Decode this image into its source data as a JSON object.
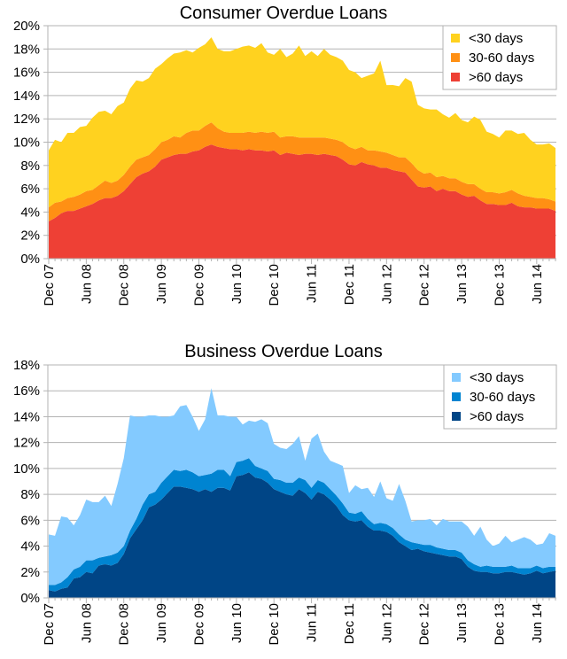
{
  "chart_data": [
    {
      "type": "area",
      "stacked": true,
      "title": "Consumer Overdue Loans",
      "xlabel": "",
      "ylabel": "",
      "ylim": [
        0,
        20
      ],
      "y_tick_labels": [
        "0%",
        "2%",
        "4%",
        "6%",
        "8%",
        "10%",
        "12%",
        "14%",
        "16%",
        "18%",
        "20%"
      ],
      "x_tick_labels": [
        "Dec 07",
        "Jun 08",
        "Dec 08",
        "Jun 09",
        "Dec 09",
        "Jun 10",
        "Dec 10",
        "Jun 11",
        "Dec 11",
        "Jun 12",
        "Dec 12",
        "Jun 13",
        "Dec 13",
        "Jun 14"
      ],
      "grid": true,
      "legend_position": "top-right",
      "x": [
        "Dec 07",
        "Jan 08",
        "Feb 08",
        "Mar 08",
        "Apr 08",
        "May 08",
        "Jun 08",
        "Jul 08",
        "Aug 08",
        "Sep 08",
        "Oct 08",
        "Nov 08",
        "Dec 08",
        "Jan 09",
        "Feb 09",
        "Mar 09",
        "Apr 09",
        "May 09",
        "Jun 09",
        "Jul 09",
        "Aug 09",
        "Sep 09",
        "Oct 09",
        "Nov 09",
        "Dec 09",
        "Jan 10",
        "Feb 10",
        "Mar 10",
        "Apr 10",
        "May 10",
        "Jun 10",
        "Jul 10",
        "Aug 10",
        "Sep 10",
        "Oct 10",
        "Nov 10",
        "Dec 10",
        "Jan 11",
        "Feb 11",
        "Mar 11",
        "Apr 11",
        "May 11",
        "Jun 11",
        "Jul 11",
        "Aug 11",
        "Sep 11",
        "Oct 11",
        "Nov 11",
        "Dec 11",
        "Jan 12",
        "Feb 12",
        "Mar 12",
        "Apr 12",
        "May 12",
        "Jun 12",
        "Jul 12",
        "Aug 12",
        "Sep 12",
        "Oct 12",
        "Nov 12",
        "Dec 12",
        "Jan 13",
        "Feb 13",
        "Mar 13",
        "Apr 13",
        "May 13",
        "Jun 13",
        "Jul 13",
        "Aug 13",
        "Sep 13",
        "Oct 13",
        "Nov 13",
        "Dec 13",
        "Jan 14",
        "Feb 14",
        "Mar 14",
        "Apr 14",
        "May 14",
        "Jun 14",
        "Jul 14",
        "Aug 14",
        "Sep 14"
      ],
      "series": [
        {
          "name": ">60 days",
          "color": "#ee4035",
          "values": [
            3.2,
            3.5,
            3.9,
            4.1,
            4.1,
            4.3,
            4.5,
            4.7,
            5.0,
            5.2,
            5.2,
            5.4,
            5.8,
            6.4,
            7.0,
            7.3,
            7.5,
            7.9,
            8.5,
            8.7,
            8.9,
            9.0,
            9.0,
            9.2,
            9.3,
            9.6,
            9.8,
            9.6,
            9.5,
            9.4,
            9.4,
            9.3,
            9.4,
            9.3,
            9.3,
            9.2,
            9.3,
            8.9,
            9.1,
            9.0,
            8.9,
            9.0,
            9.0,
            8.9,
            9.0,
            8.9,
            8.8,
            8.5,
            8.1,
            8.0,
            8.3,
            8.1,
            8.0,
            7.8,
            7.8,
            7.6,
            7.5,
            7.4,
            6.8,
            6.2,
            6.1,
            6.2,
            5.8,
            6.0,
            5.8,
            5.8,
            5.5,
            5.3,
            5.4,
            5.0,
            4.7,
            4.7,
            4.6,
            4.6,
            4.8,
            4.5,
            4.4,
            4.4,
            4.3,
            4.3,
            4.3,
            4.1
          ]
        },
        {
          "name": "30-60 days",
          "color": "#ff9014",
          "values": [
            1.2,
            1.3,
            1.0,
            1.1,
            1.2,
            1.2,
            1.3,
            1.2,
            1.3,
            1.5,
            1.3,
            1.3,
            1.4,
            1.5,
            1.5,
            1.4,
            1.4,
            1.5,
            1.5,
            1.5,
            1.6,
            1.4,
            1.8,
            1.8,
            1.7,
            1.8,
            1.9,
            1.6,
            1.4,
            1.4,
            1.4,
            1.5,
            1.5,
            1.5,
            1.6,
            1.6,
            1.6,
            1.5,
            1.4,
            1.5,
            1.5,
            1.4,
            1.4,
            1.5,
            1.4,
            1.4,
            1.4,
            1.5,
            1.5,
            1.4,
            1.3,
            1.2,
            1.3,
            1.4,
            1.3,
            1.3,
            1.2,
            1.3,
            1.4,
            1.4,
            1.2,
            1.2,
            1.2,
            1.1,
            1.1,
            1.1,
            1.1,
            1.1,
            1.0,
            1.0,
            1.0,
            1.0,
            1.0,
            1.1,
            1.1,
            1.1,
            1.0,
            0.9,
            0.9,
            0.9,
            0.8,
            0.8
          ]
        },
        {
          "name": "<30 days",
          "color": "#ffd21f",
          "values": [
            4.9,
            5.4,
            5.1,
            5.6,
            5.5,
            5.8,
            5.6,
            6.2,
            6.3,
            6.0,
            5.9,
            6.4,
            6.2,
            6.7,
            6.8,
            6.5,
            6.6,
            6.9,
            6.7,
            7.0,
            7.1,
            7.3,
            7.1,
            6.7,
            7.1,
            7.0,
            7.3,
            6.8,
            6.9,
            7.0,
            7.2,
            7.4,
            7.4,
            7.3,
            7.6,
            6.9,
            6.6,
            7.6,
            6.8,
            7.1,
            7.9,
            7.0,
            7.4,
            7.0,
            7.6,
            7.2,
            7.1,
            7.0,
            6.6,
            6.6,
            5.9,
            6.4,
            6.6,
            7.8,
            5.8,
            6.0,
            6.1,
            6.8,
            7.0,
            5.6,
            5.6,
            5.4,
            5.8,
            5.3,
            5.2,
            5.6,
            5.3,
            5.3,
            5.8,
            5.9,
            5.2,
            5.0,
            4.8,
            5.3,
            5.1,
            5.1,
            5.4,
            4.9,
            4.6,
            4.6,
            4.8,
            4.6
          ]
        }
      ]
    },
    {
      "type": "area",
      "stacked": true,
      "title": "Business Overdue Loans",
      "xlabel": "",
      "ylabel": "",
      "ylim": [
        0,
        18
      ],
      "y_tick_labels": [
        "0%",
        "2%",
        "4%",
        "6%",
        "8%",
        "10%",
        "12%",
        "14%",
        "16%",
        "18%"
      ],
      "x_tick_labels": [
        "Dec 07",
        "Jun 08",
        "Dec 08",
        "Jun 09",
        "Dec 09",
        "Jun 10",
        "Dec 10",
        "Jun 11",
        "Dec 11",
        "Jun 12",
        "Dec 12",
        "Jun 13",
        "Dec 13",
        "Jun 14"
      ],
      "grid": true,
      "legend_position": "top-right",
      "x": [
        "Dec 07",
        "Jan 08",
        "Feb 08",
        "Mar 08",
        "Apr 08",
        "May 08",
        "Jun 08",
        "Jul 08",
        "Aug 08",
        "Sep 08",
        "Oct 08",
        "Nov 08",
        "Dec 08",
        "Jan 09",
        "Feb 09",
        "Mar 09",
        "Apr 09",
        "May 09",
        "Jun 09",
        "Jul 09",
        "Aug 09",
        "Sep 09",
        "Oct 09",
        "Nov 09",
        "Dec 09",
        "Jan 10",
        "Feb 10",
        "Mar 10",
        "Apr 10",
        "May 10",
        "Jun 10",
        "Jul 10",
        "Aug 10",
        "Sep 10",
        "Oct 10",
        "Nov 10",
        "Dec 10",
        "Jan 11",
        "Feb 11",
        "Mar 11",
        "Apr 11",
        "May 11",
        "Jun 11",
        "Jul 11",
        "Aug 11",
        "Sep 11",
        "Oct 11",
        "Nov 11",
        "Dec 11",
        "Jan 12",
        "Feb 12",
        "Mar 12",
        "Apr 12",
        "May 12",
        "Jun 12",
        "Jul 12",
        "Aug 12",
        "Sep 12",
        "Oct 12",
        "Nov 12",
        "Dec 12",
        "Jan 13",
        "Feb 13",
        "Mar 13",
        "Apr 13",
        "May 13",
        "Jun 13",
        "Jul 13",
        "Aug 13",
        "Sep 13",
        "Oct 13",
        "Nov 13",
        "Dec 13",
        "Jan 14",
        "Feb 14",
        "Mar 14",
        "Apr 14",
        "May 14",
        "Jun 14",
        "Jul 14",
        "Aug 14",
        "Sep 14"
      ],
      "series": [
        {
          "name": ">60 days",
          "color": "#004586",
          "values": [
            0.6,
            0.5,
            0.7,
            0.8,
            1.5,
            1.6,
            2.0,
            1.9,
            2.5,
            2.6,
            2.5,
            2.7,
            3.4,
            4.6,
            5.3,
            6.0,
            7.0,
            7.2,
            7.6,
            8.1,
            8.6,
            8.6,
            8.5,
            8.4,
            8.2,
            8.4,
            8.2,
            8.5,
            8.5,
            8.3,
            9.4,
            9.5,
            9.7,
            9.3,
            9.2,
            8.9,
            8.4,
            8.2,
            8.0,
            7.9,
            8.4,
            8.1,
            7.6,
            8.2,
            8.0,
            7.6,
            7.1,
            6.4,
            6.0,
            5.9,
            6.0,
            5.5,
            5.2,
            5.2,
            5.1,
            4.8,
            4.3,
            4.0,
            3.7,
            3.8,
            3.6,
            3.5,
            3.4,
            3.3,
            3.2,
            3.2,
            3.0,
            2.4,
            2.1,
            2.0,
            2.0,
            1.9,
            1.9,
            2.0,
            2.0,
            1.9,
            1.8,
            1.9,
            2.1,
            1.9,
            2.0,
            2.1
          ]
        },
        {
          "name": "30-60 days",
          "color": "#0084d1",
          "values": [
            0.4,
            0.5,
            0.5,
            0.8,
            0.7,
            0.8,
            0.9,
            1.0,
            0.6,
            0.6,
            0.8,
            0.8,
            0.6,
            0.6,
            0.8,
            1.2,
            1.0,
            1.0,
            1.3,
            1.3,
            1.3,
            1.2,
            1.4,
            1.3,
            1.2,
            1.1,
            1.4,
            1.4,
            1.4,
            1.1,
            1.1,
            1.1,
            1.1,
            0.9,
            0.8,
            0.9,
            0.8,
            0.9,
            0.9,
            1.0,
            0.9,
            1.0,
            0.9,
            0.9,
            0.9,
            0.8,
            0.8,
            0.9,
            0.6,
            0.6,
            0.7,
            0.6,
            0.5,
            0.6,
            0.6,
            0.6,
            0.6,
            0.5,
            0.6,
            0.4,
            0.5,
            0.6,
            0.5,
            0.5,
            0.5,
            0.5,
            0.5,
            0.5,
            0.5,
            0.4,
            0.5,
            0.5,
            0.5,
            0.4,
            0.5,
            0.4,
            0.5,
            0.4,
            0.4,
            0.4,
            0.4,
            0.3
          ]
        },
        {
          "name": "<30 days",
          "color": "#83caff",
          "values": [
            3.9,
            3.8,
            5.1,
            4.6,
            3.4,
            4.0,
            4.7,
            4.5,
            4.3,
            4.7,
            3.8,
            5.3,
            6.8,
            8.9,
            7.9,
            6.8,
            6.1,
            5.9,
            5.1,
            4.6,
            4.2,
            5.0,
            5.0,
            4.3,
            3.5,
            4.3,
            6.6,
            4.2,
            4.2,
            4.6,
            3.5,
            2.8,
            2.9,
            3.4,
            3.8,
            3.7,
            2.7,
            2.5,
            2.6,
            3.0,
            3.2,
            1.5,
            3.8,
            3.6,
            2.4,
            2.2,
            2.5,
            2.9,
            1.5,
            2.2,
            1.7,
            2.4,
            2.1,
            3.2,
            2.0,
            2.1,
            3.9,
            3.0,
            1.6,
            1.8,
            1.9,
            2.0,
            1.7,
            2.3,
            2.2,
            2.2,
            2.4,
            2.6,
            2.2,
            3.1,
            2.0,
            1.6,
            1.8,
            2.4,
            1.8,
            2.2,
            2.4,
            2.2,
            1.6,
            1.9,
            2.6,
            2.4
          ]
        }
      ]
    }
  ]
}
